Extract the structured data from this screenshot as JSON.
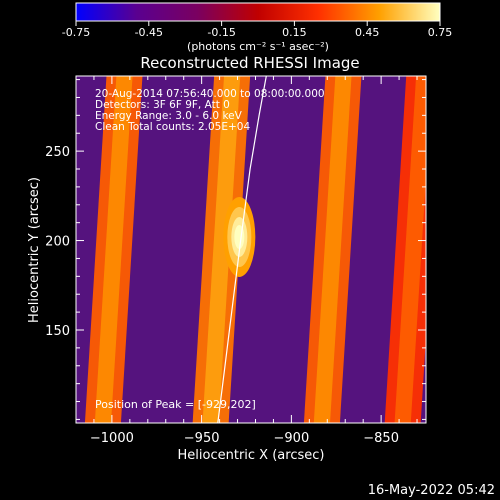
{
  "chart_data": {
    "type": "heatmap",
    "title": "Reconstructed RHESSI Image",
    "xlabel": "Heliocentric X (arcsec)",
    "ylabel": "Heliocentric Y (arcsec)",
    "xlim": [
      -1020,
      -825
    ],
    "ylim": [
      98,
      292
    ],
    "x_ticks": [
      -1000,
      -950,
      -900,
      -850
    ],
    "y_ticks": [
      150,
      200,
      250
    ],
    "colorbar": {
      "range": [
        -0.75,
        0.75
      ],
      "ticks": [
        -0.75,
        -0.45,
        -0.15,
        0.15,
        0.45,
        0.75
      ],
      "units_text": "(photons cm⁻² s⁻¹ asec⁻²)",
      "colormap": [
        "#0000ff",
        "#5a0090",
        "#7a0060",
        "#c00000",
        "#ff3000",
        "#ffa000",
        "#ffffc0"
      ]
    },
    "info_lines": [
      "20-Aug-2014 07:56:40.000 to 08:00:00.000",
      "Detectors: 3F 6F 9F, Att 0",
      "Energy Range: 3.0 - 6.0 keV",
      "Clean    Total counts: 2.05E+04"
    ],
    "peak_label": "Position of Peak = [-929,202]",
    "peak": [
      -929,
      202
    ],
    "stripes": [
      {
        "x_at_ymin": -1005,
        "x_at_ymax": -993,
        "value": 0.35
      },
      {
        "x_at_ymin": -945,
        "x_at_ymax": -933,
        "value": 0.4
      },
      {
        "x_at_ymin": -883,
        "x_at_ymax": -871,
        "value": 0.35
      },
      {
        "x_at_ymin": -838,
        "x_at_ymax": -826,
        "value": 0.25
      }
    ],
    "background_value": -0.35,
    "limb_curve": [
      [
        -941,
        98
      ],
      [
        -937,
        130
      ],
      [
        -932,
        170
      ],
      [
        -928,
        202
      ],
      [
        -923,
        240
      ],
      [
        -918,
        270
      ],
      [
        -914,
        292
      ]
    ]
  },
  "footer": {
    "timestamp": "16-May-2022 05:42"
  }
}
